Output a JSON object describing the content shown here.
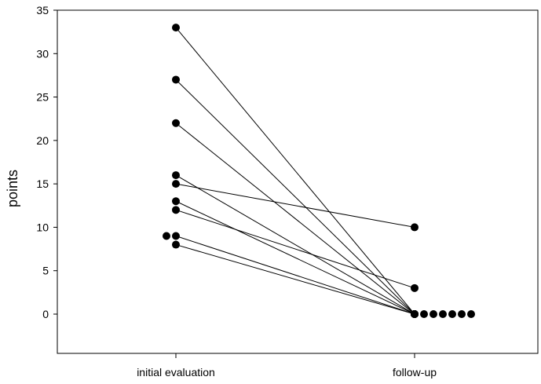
{
  "chart_data": {
    "type": "line",
    "title": "",
    "xlabel": "",
    "ylabel": "points",
    "categories": [
      "initial evaluation",
      "follow-up"
    ],
    "ylim": [
      -4.5,
      35
    ],
    "yticks": [
      0,
      5,
      10,
      15,
      20,
      25,
      30,
      35
    ],
    "grid": false,
    "pairs": [
      {
        "initial": 33,
        "follow_up": 0
      },
      {
        "initial": 27,
        "follow_up": 0
      },
      {
        "initial": 22,
        "follow_up": 0
      },
      {
        "initial": 16,
        "follow_up": 0
      },
      {
        "initial": 15,
        "follow_up": 10
      },
      {
        "initial": 13,
        "follow_up": 0
      },
      {
        "initial": 12,
        "follow_up": 3
      },
      {
        "initial": 9,
        "follow_up": 0
      },
      {
        "initial": 8,
        "follow_up": 0
      }
    ],
    "extra_points": [
      {
        "category": "initial evaluation",
        "value": 9,
        "offset": -1
      },
      {
        "category": "follow-up",
        "value": 0,
        "offset": 1
      },
      {
        "category": "follow-up",
        "value": 0,
        "offset": 2
      },
      {
        "category": "follow-up",
        "value": 0,
        "offset": 3
      },
      {
        "category": "follow-up",
        "value": 0,
        "offset": 4
      },
      {
        "category": "follow-up",
        "value": 0,
        "offset": 5
      },
      {
        "category": "follow-up",
        "value": 0,
        "offset": 6
      }
    ]
  }
}
